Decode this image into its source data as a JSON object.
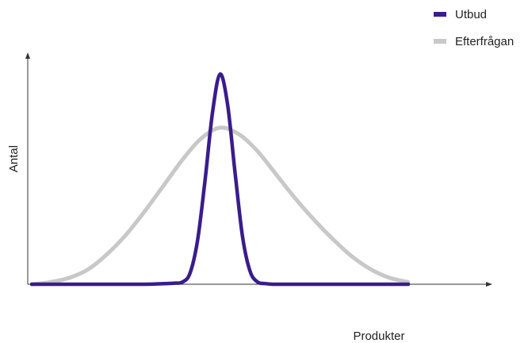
{
  "chart_data": {
    "type": "line",
    "title": "",
    "xlabel": "Produkter",
    "ylabel": "Antal",
    "grid": false,
    "legend_position": "top-right",
    "xlim": [
      0,
      100
    ],
    "ylim": [
      0,
      100
    ],
    "x_ticks": [],
    "y_ticks": [],
    "series": [
      {
        "name": "Utbud",
        "color": "#3a1c8c",
        "x": [
          0,
          10,
          20,
          30,
          35,
          38,
          40,
          42,
          44,
          46,
          48,
          50,
          52,
          54,
          56,
          58,
          60,
          62,
          64,
          66,
          70,
          80,
          90,
          100
        ],
        "y": [
          0,
          0,
          0,
          0,
          0.3,
          0.5,
          1,
          5,
          20,
          48,
          80,
          98,
          84,
          52,
          22,
          6,
          1,
          0.3,
          0,
          0,
          0,
          0,
          0,
          0
        ]
      },
      {
        "name": "Efterfrågan",
        "color": "#c8c8c8",
        "x": [
          0,
          5,
          10,
          15,
          20,
          25,
          30,
          35,
          40,
          45,
          50,
          55,
          60,
          65,
          70,
          75,
          80,
          85,
          90,
          95,
          100
        ],
        "y": [
          0,
          1,
          3,
          7,
          14,
          23,
          34,
          46,
          58,
          68,
          73,
          70,
          62,
          51,
          40,
          30,
          21,
          13,
          7,
          3,
          1
        ]
      }
    ]
  }
}
